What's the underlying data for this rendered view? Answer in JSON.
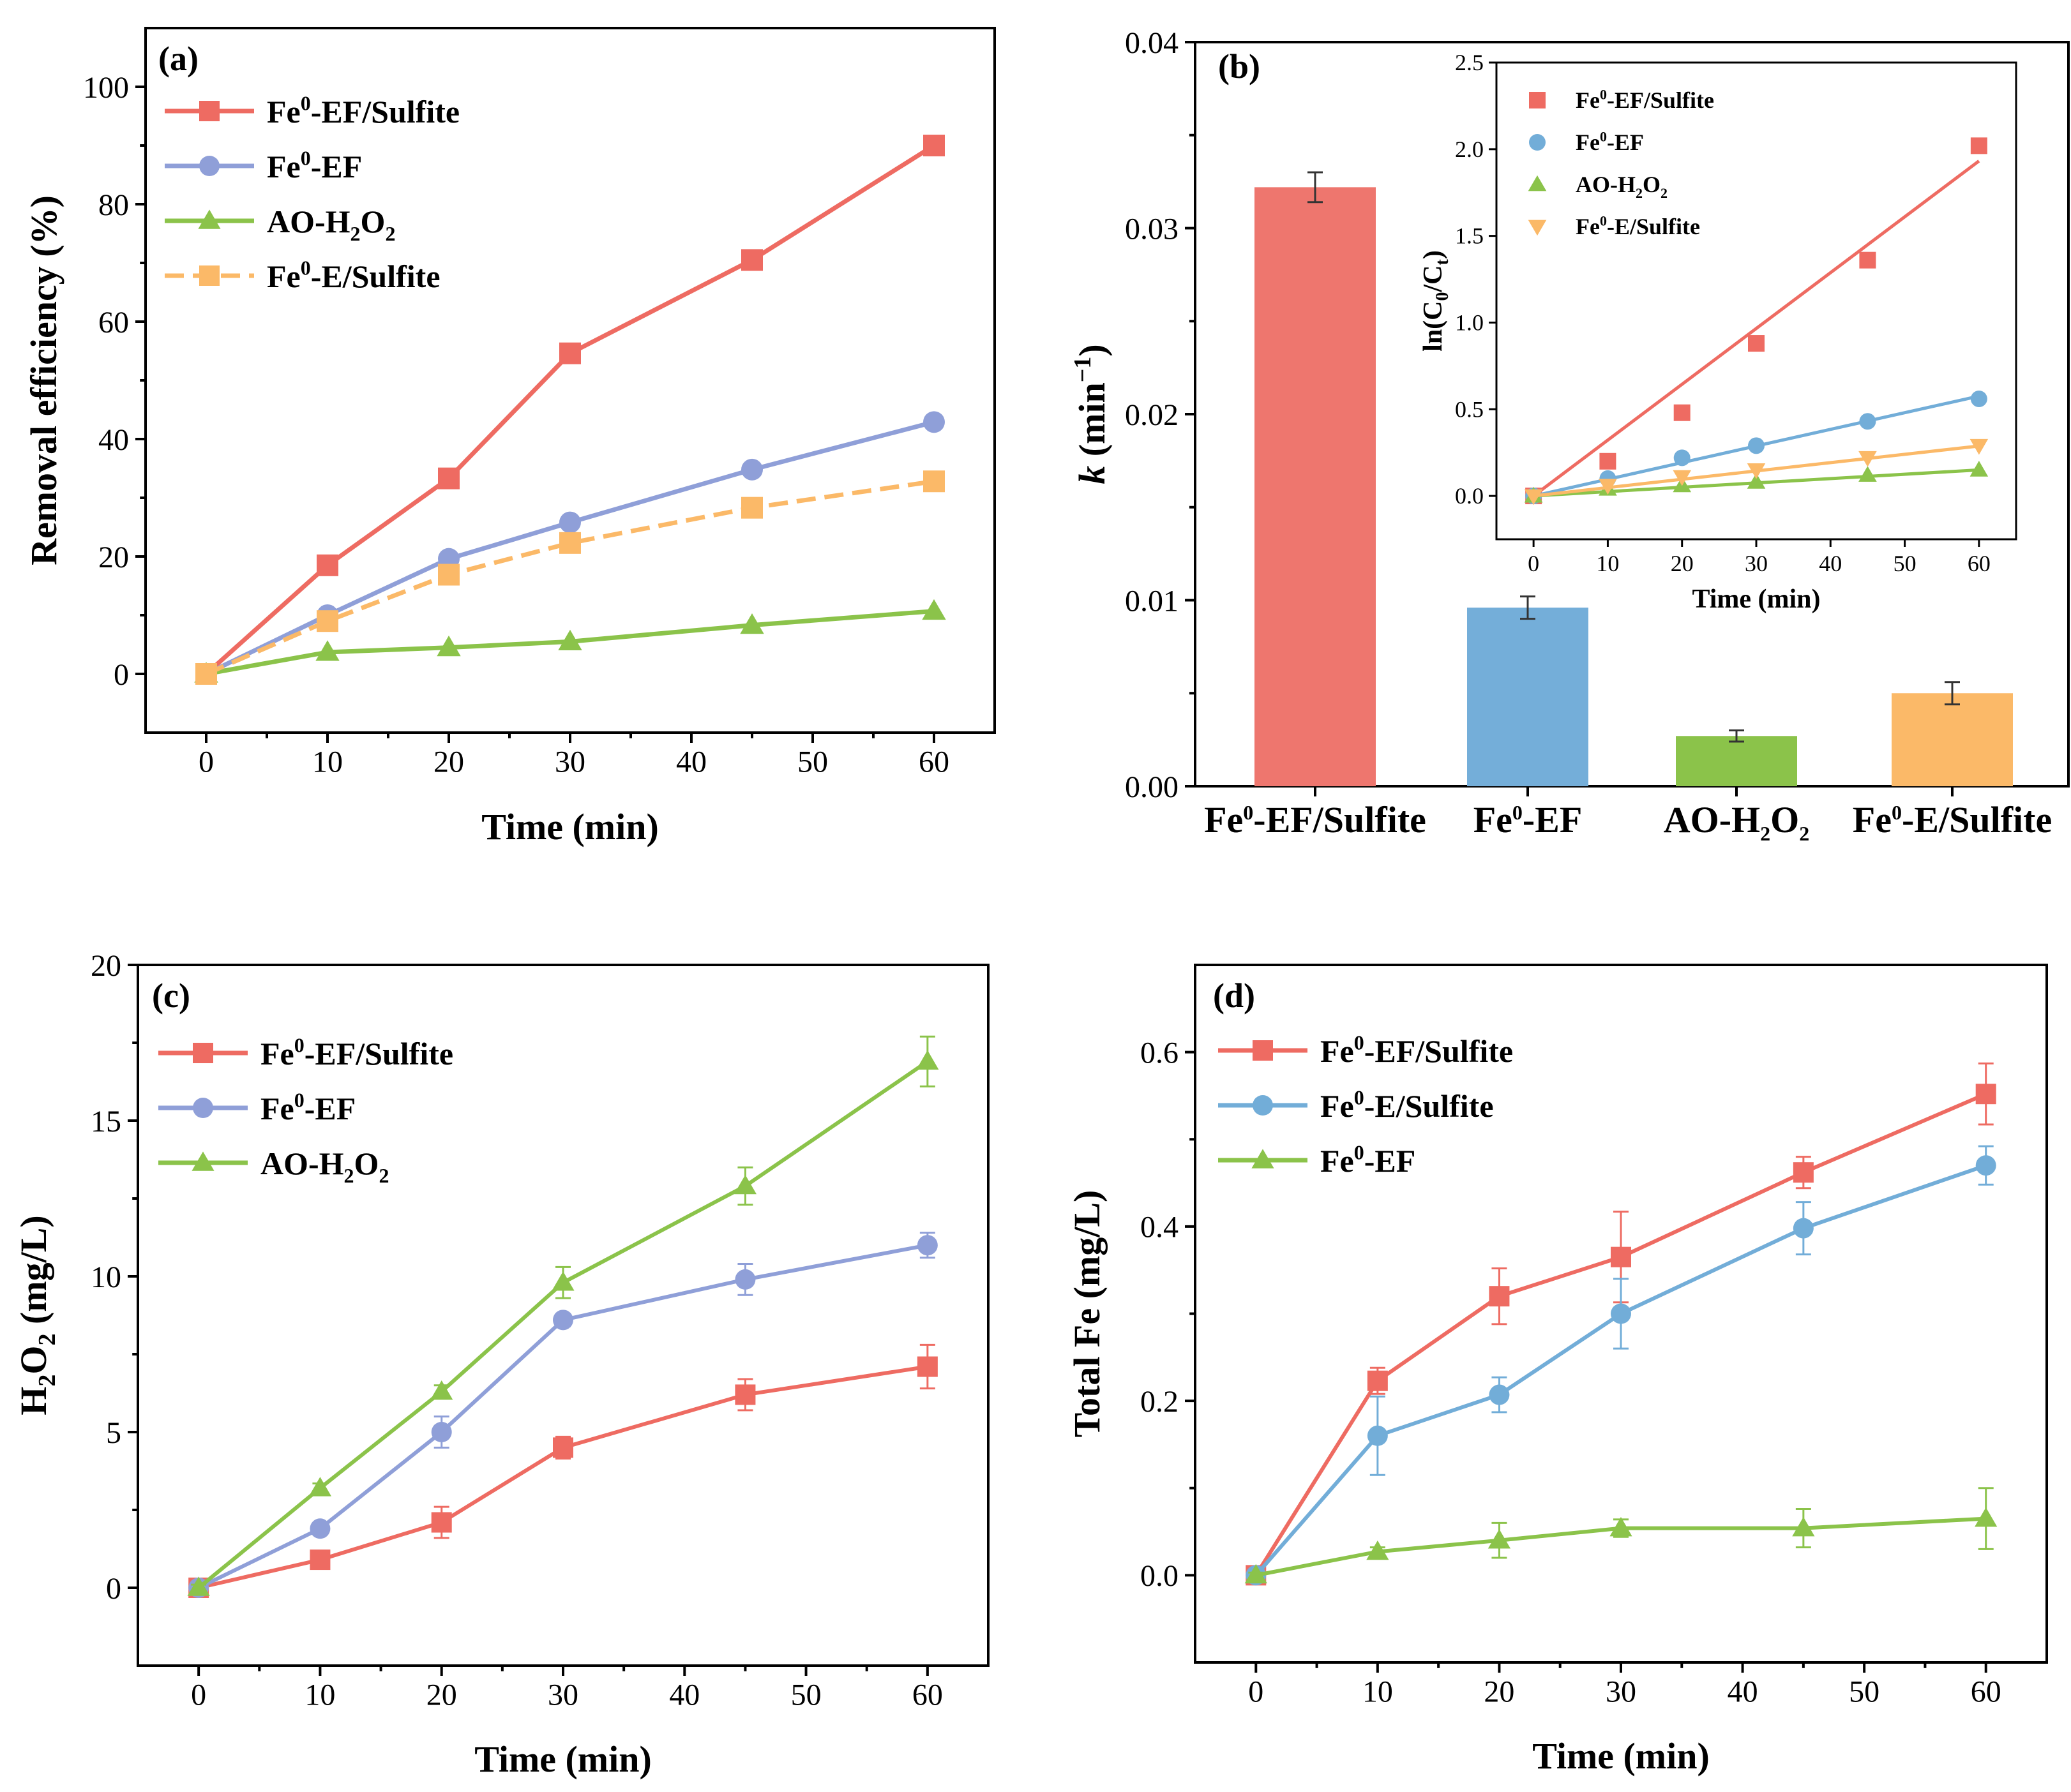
{
  "colors": {
    "red": "#ee6b62",
    "blue_a": "#8f9fd8",
    "blue_b": "#72add8",
    "green": "#8bc34a",
    "orange": "#fbb968",
    "errbar": "#333333"
  },
  "chart_data": [
    {
      "panel": "(a)",
      "type": "line",
      "xlabel": "Time (min)",
      "ylabel": "Removal efficiency (%)",
      "x": [
        0,
        10,
        20,
        30,
        45,
        60
      ],
      "xlim": [
        -5,
        65
      ],
      "ylim": [
        -10,
        110
      ],
      "xticks": [
        0,
        10,
        20,
        30,
        40,
        50,
        60
      ],
      "yticks": [
        0,
        20,
        40,
        60,
        80,
        100
      ],
      "legend_position": "top-left",
      "series": [
        {
          "base": "Fe",
          "sup": "0",
          "suffix": "-EF/Sulfite",
          "color": "#ee6b62",
          "marker": "square",
          "dash": false,
          "values": [
            0,
            18.5,
            33.3,
            54.6,
            70.5,
            90.0
          ]
        },
        {
          "base": "Fe",
          "sup": "0",
          "suffix": "-EF",
          "color": "#8f9fd8",
          "marker": "circle",
          "dash": false,
          "values": [
            0,
            10.0,
            19.6,
            25.8,
            34.8,
            42.9
          ]
        },
        {
          "base": "AO-H",
          "sub1": "2",
          "mid": "O",
          "sub2": "2",
          "color": "#8bc34a",
          "marker": "triangle",
          "dash": false,
          "values": [
            0,
            3.7,
            4.5,
            5.5,
            8.3,
            10.7
          ]
        },
        {
          "base": "Fe",
          "sup": "0",
          "suffix": "-E/Sulfite",
          "color": "#fbb968",
          "marker": "square",
          "dash": true,
          "values": [
            0,
            9.0,
            16.9,
            22.3,
            28.3,
            32.8
          ]
        }
      ]
    },
    {
      "panel": "(b)",
      "type": "bar",
      "ylabel_k": "k",
      "ylabel_rest": " (min",
      "ylabel_sup": "−1",
      "ylabel_end": ")",
      "ylim": [
        0,
        0.04
      ],
      "yticks": [
        "0.00",
        "0.01",
        "0.02",
        "0.03",
        "0.04"
      ],
      "categories": [
        {
          "base": "Fe",
          "sup": "0",
          "suffix": "-EF/Sulfite"
        },
        {
          "base": "Fe",
          "sup": "0",
          "suffix": "-EF"
        },
        {
          "base": "AO-H",
          "sub1": "2",
          "mid": "O",
          "sub2": "2"
        },
        {
          "base": "Fe",
          "sup": "0",
          "suffix": "-E/Sulfite"
        }
      ],
      "values": [
        0.0322,
        0.0096,
        0.0027,
        0.005
      ],
      "errors": [
        0.0008,
        0.0006,
        0.0003,
        0.0006
      ],
      "colors": [
        "#ee766e",
        "#74aed9",
        "#8bc34a",
        "#fbb968"
      ],
      "inset": {
        "type": "scatter",
        "xlabel": "Time (min)",
        "ylabel_base": "ln(C",
        "ylabel_sub1": "0",
        "ylabel_mid": "/C",
        "ylabel_sub2": "t",
        "ylabel_end": ")",
        "x": [
          0,
          10,
          20,
          30,
          45,
          60
        ],
        "xlim": [
          -5,
          65
        ],
        "ylim": [
          -0.25,
          2.5
        ],
        "xticks": [
          0,
          10,
          20,
          30,
          40,
          50,
          60
        ],
        "yticks": [
          "0.0",
          "0.5",
          "1.0",
          "1.5",
          "2.0",
          "2.5"
        ],
        "legend_position": "top-left",
        "series": [
          {
            "base": "Fe",
            "sup": "0",
            "suffix": "-EF/Sulfite",
            "color": "#ee6b62",
            "marker": "square",
            "values": [
              0,
              0.2,
              0.48,
              0.88,
              1.36,
              2.02
            ],
            "slope": 0.0322
          },
          {
            "base": "Fe",
            "sup": "0",
            "suffix": "-EF",
            "color": "#72add8",
            "marker": "circle",
            "values": [
              0,
              0.1,
              0.22,
              0.29,
              0.43,
              0.56
            ],
            "slope": 0.0096
          },
          {
            "base": "AO-H",
            "sub1": "2",
            "mid": "O",
            "sub2": "2",
            "color": "#8bc34a",
            "marker": "triangle",
            "values": [
              0,
              0.04,
              0.06,
              0.08,
              0.12,
              0.15
            ],
            "slope": 0.0025
          },
          {
            "base": "Fe",
            "sup": "0",
            "suffix": "-E/Sulfite",
            "color": "#fbb968",
            "marker": "triangle-down",
            "values": [
              0,
              0.06,
              0.11,
              0.15,
              0.22,
              0.29
            ],
            "slope": 0.0048
          }
        ]
      }
    },
    {
      "panel": "(c)",
      "type": "line",
      "xlabel": "Time (min)",
      "ylabel_base": "H",
      "ylabel_sub1": "2",
      "ylabel_mid": "O",
      "ylabel_sub2": "2",
      "ylabel_end": " (mg/L)",
      "x": [
        0,
        10,
        20,
        30,
        45,
        60
      ],
      "xlim": [
        -5,
        65
      ],
      "ylim": [
        -2.5,
        20
      ],
      "xticks": [
        0,
        10,
        20,
        30,
        40,
        50,
        60
      ],
      "yticks": [
        0,
        5,
        10,
        15,
        20
      ],
      "legend_position": "top-left",
      "series": [
        {
          "base": "Fe",
          "sup": "0",
          "suffix": "-EF/Sulfite",
          "color": "#ee6b62",
          "marker": "square",
          "values": [
            0,
            0.9,
            2.1,
            4.5,
            6.2,
            7.1
          ],
          "errors": [
            0.1,
            0.15,
            0.5,
            0.35,
            0.5,
            0.7
          ]
        },
        {
          "base": "Fe",
          "sup": "0",
          "suffix": "-EF",
          "color": "#8f9fd8",
          "marker": "circle",
          "values": [
            0,
            1.9,
            5.0,
            8.6,
            9.9,
            11.0
          ],
          "errors": [
            0.1,
            0.15,
            0.5,
            0.2,
            0.5,
            0.4
          ]
        },
        {
          "base": "AO-H",
          "sub1": "2",
          "mid": "O",
          "sub2": "2",
          "color": "#8bc34a",
          "marker": "triangle",
          "values": [
            0,
            3.2,
            6.3,
            9.8,
            12.9,
            16.9
          ],
          "errors": [
            0.1,
            0.15,
            0.2,
            0.5,
            0.6,
            0.8
          ]
        }
      ]
    },
    {
      "panel": "(d)",
      "type": "line",
      "xlabel": "Time (min)",
      "ylabel": "Total Fe (mg/L)",
      "x": [
        0,
        10,
        20,
        30,
        45,
        60
      ],
      "xlim": [
        -5,
        65
      ],
      "ylim": [
        -0.1,
        0.7
      ],
      "xticks": [
        0,
        10,
        20,
        30,
        40,
        50,
        60
      ],
      "yticks": [
        "0.0",
        "0.2",
        "0.4",
        "0.6"
      ],
      "legend_position": "top-left",
      "series": [
        {
          "base": "Fe",
          "sup": "0",
          "suffix": "-EF/Sulfite",
          "color": "#ee6b62",
          "marker": "square",
          "values": [
            0,
            0.223,
            0.32,
            0.365,
            0.462,
            0.552
          ],
          "errors": [
            0.003,
            0.015,
            0.032,
            0.052,
            0.018,
            0.035
          ]
        },
        {
          "base": "Fe",
          "sup": "0",
          "suffix": "-E/Sulfite",
          "color": "#72add8",
          "marker": "circle",
          "values": [
            0,
            0.16,
            0.207,
            0.3,
            0.398,
            0.47
          ],
          "errors": [
            0.003,
            0.045,
            0.02,
            0.04,
            0.03,
            0.022
          ]
        },
        {
          "base": "Fe",
          "sup": "0",
          "suffix": "-EF",
          "color": "#8bc34a",
          "marker": "triangle",
          "values": [
            0,
            0.027,
            0.04,
            0.054,
            0.054,
            0.065
          ],
          "errors": [
            0.003,
            0.005,
            0.02,
            0.01,
            0.022,
            0.035
          ]
        }
      ]
    }
  ]
}
